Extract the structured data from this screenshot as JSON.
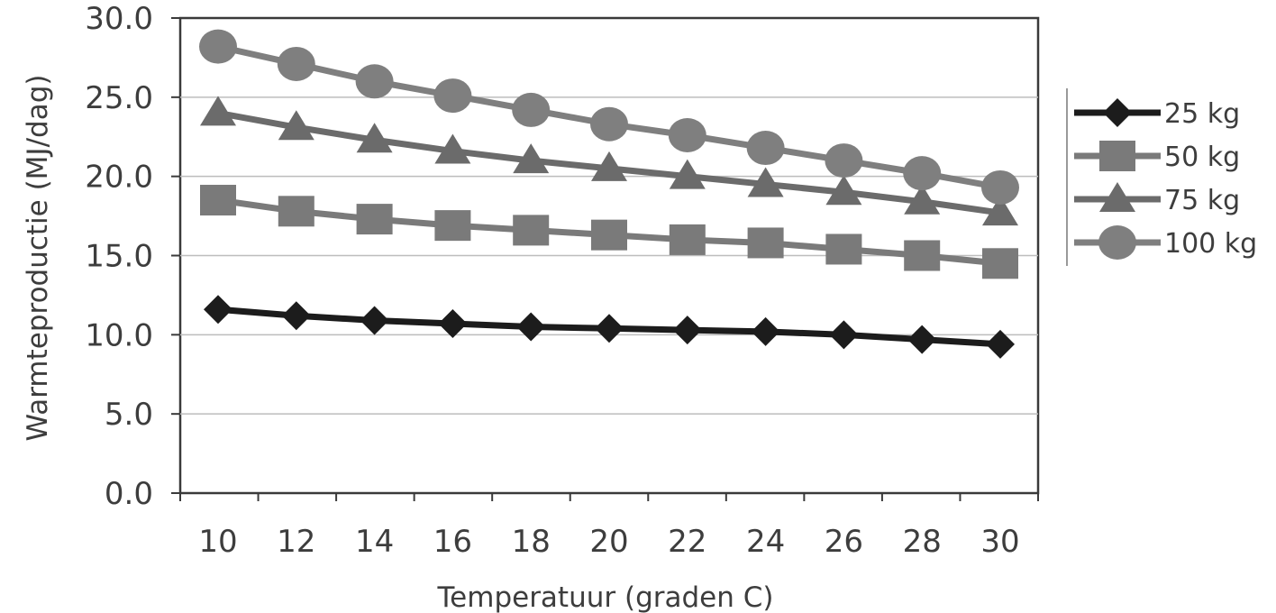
{
  "chart_data": {
    "type": "line",
    "title": "",
    "xlabel": "Temperatuur (graden C)",
    "ylabel": "Warmteproductie (MJ/dag)",
    "x": [
      10,
      12,
      14,
      16,
      18,
      20,
      22,
      24,
      26,
      28,
      30
    ],
    "x_tick_labels": [
      "10",
      "12",
      "14",
      "16",
      "18",
      "20",
      "22",
      "24",
      "26",
      "28",
      "30"
    ],
    "y_tick_labels": [
      "0.0",
      "5.0",
      "10.0",
      "15.0",
      "20.0",
      "25.0",
      "30.0"
    ],
    "ylim": [
      0,
      30
    ],
    "grid": true,
    "legend_position": "right",
    "series": [
      {
        "name": "25 kg",
        "marker": "diamond",
        "color": "#1c1c1c",
        "values": [
          11.6,
          11.2,
          10.9,
          10.7,
          10.5,
          10.4,
          10.3,
          10.2,
          10.0,
          9.7,
          9.4
        ]
      },
      {
        "name": "50 kg",
        "marker": "square",
        "color": "#7a7a7a",
        "values": [
          18.5,
          17.8,
          17.3,
          16.9,
          16.6,
          16.3,
          16.0,
          15.8,
          15.4,
          15.0,
          14.5
        ]
      },
      {
        "name": "75 kg",
        "marker": "triangle",
        "color": "#6b6b6b",
        "values": [
          24.0,
          23.1,
          22.3,
          21.6,
          21.0,
          20.5,
          20.0,
          19.5,
          19.0,
          18.4,
          17.7
        ]
      },
      {
        "name": "100 kg",
        "marker": "circle",
        "color": "#7f7f7f",
        "values": [
          28.2,
          27.1,
          26.0,
          25.1,
          24.2,
          23.3,
          22.6,
          21.8,
          21.0,
          20.2,
          19.3
        ]
      }
    ]
  }
}
